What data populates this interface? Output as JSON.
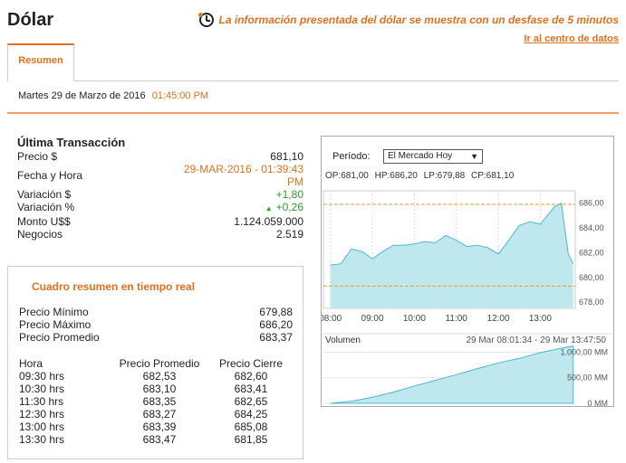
{
  "page": {
    "title": "Dólar",
    "notice": "La información presentada del dólar se muestra con un desfase de 5 minutos",
    "datacenter_link": "Ir al centro de datos",
    "tab_resumen": "Resumen",
    "date_text": "Martes  29  de  Marzo de  2016",
    "date_time": "01:45:00 PM"
  },
  "last": {
    "title": "Última Transacción",
    "rows": [
      {
        "label": "Precio $",
        "value": "681,10"
      },
      {
        "label": "Fecha y Hora",
        "value": "29-MAR-2016 -   01:39:43 PM"
      },
      {
        "label": "Variación $",
        "value": "+1,80"
      },
      {
        "label": "Variación %",
        "value": "+0,26"
      },
      {
        "label": "Monto U$$",
        "value": "1.124.059.000"
      },
      {
        "label": "Negocios",
        "value": "2.519"
      }
    ]
  },
  "summary": {
    "title": "Cuadro resumen en tiempo real",
    "stats": [
      {
        "label": "Precio Mínimo",
        "value": "679,88"
      },
      {
        "label": "Precio Máximo",
        "value": "686,20"
      },
      {
        "label": "Precio Promedio",
        "value": "683,37"
      }
    ],
    "headers": [
      "Hora",
      "Precio Promedio",
      "Precio Cierre"
    ],
    "rows": [
      [
        "09:30 hrs",
        "682,53",
        "682,60"
      ],
      [
        "10:30 hrs",
        "683,10",
        "683,41"
      ],
      [
        "11:30 hrs",
        "683,35",
        "682,65"
      ],
      [
        "12:30 hrs",
        "683,27",
        "684,25"
      ],
      [
        "13:00 hrs",
        "683,39",
        "685,08"
      ],
      [
        "13:30 hrs",
        "683,47",
        "681,85"
      ]
    ]
  },
  "chart_panel": {
    "period_label": "Período:",
    "period_value": "El Mercado Hoy",
    "ohlc": "OP:681,00  HP:686,20  LP:679,88  CP:681,10",
    "volume_label": "Volumen",
    "volume_range": "29 Mar 08:01:34 - 29 Mar 13:47:50"
  },
  "chart_data": [
    {
      "type": "area",
      "x": [
        "08:00",
        "08:15",
        "08:30",
        "08:45",
        "09:00",
        "09:15",
        "09:30",
        "09:45",
        "10:00",
        "10:15",
        "10:30",
        "10:45",
        "11:00",
        "11:15",
        "11:30",
        "11:45",
        "12:00",
        "12:15",
        "12:30",
        "12:45",
        "13:00",
        "13:10",
        "13:20",
        "13:30",
        "13:40",
        "13:47"
      ],
      "series": [
        {
          "values": [
            681.0,
            681.1,
            682.3,
            682.1,
            681.5,
            682.1,
            682.6,
            682.6,
            682.7,
            682.9,
            682.8,
            683.4,
            683.0,
            682.5,
            682.6,
            682.4,
            681.9,
            683.0,
            684.2,
            684.5,
            684.3,
            685.0,
            685.7,
            686.0,
            681.9,
            681.1
          ]
        }
      ],
      "yticks": [
        "686,00",
        "684,00",
        "682,00",
        "680,00",
        "678,00"
      ],
      "ylim": [
        677.5,
        687.0
      ],
      "reference_lines": [
        685.9,
        679.3
      ],
      "xticks": [
        "08:00",
        "09:00",
        "10:00",
        "11:00",
        "12:00",
        "13:00"
      ],
      "colors": {
        "fill": "#bfe7ee",
        "line": "#4cb8cc",
        "ref": "#e0a020"
      }
    },
    {
      "type": "area",
      "title": "Volumen",
      "x": [
        "08:00",
        "08:30",
        "09:00",
        "09:30",
        "10:00",
        "10:30",
        "11:00",
        "11:30",
        "12:00",
        "12:30",
        "13:00",
        "13:30",
        "13:47"
      ],
      "series": [
        {
          "values": [
            0,
            40,
            120,
            220,
            340,
            450,
            560,
            680,
            790,
            880,
            990,
            1080,
            1124
          ]
        }
      ],
      "yticks": [
        "1.000,00 MM",
        "500,00 MM",
        "0 MM"
      ],
      "ylim": [
        0,
        1150
      ],
      "colors": {
        "fill": "#bfe7ee",
        "line": "#4cb8cc"
      }
    }
  ]
}
